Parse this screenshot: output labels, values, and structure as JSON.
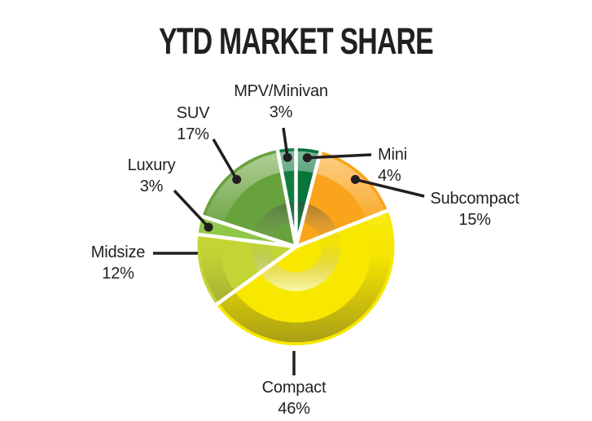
{
  "title": "YTD MARKET SHARE",
  "chart_data": {
    "type": "pie",
    "title": "YTD MARKET SHARE",
    "unit": "%",
    "start_angle_deg": 0,
    "direction": "clockwise",
    "legend_position": "outside-callouts",
    "grid": false,
    "slices": [
      {
        "label": "Mini",
        "value": 4,
        "color": "#077439"
      },
      {
        "label": "Subcompact",
        "value": 15,
        "color": "#F9A41B"
      },
      {
        "label": "Compact",
        "value": 46,
        "color": "#F8E800"
      },
      {
        "label": "Midsize",
        "value": 12,
        "color": "#C3D534"
      },
      {
        "label": "Luxury",
        "value": 3,
        "color": "#8FC747"
      },
      {
        "label": "SUV",
        "value": 17,
        "color": "#68A23C"
      },
      {
        "label": "MPV/Minivan",
        "value": 3,
        "color": "#117E41"
      }
    ]
  },
  "styles": {
    "background": "#FFFFFF",
    "title_color": "#231F20",
    "label_color": "#231F20",
    "leader_line_color": "#231F20",
    "slice_divider_color": "#FFFFFF"
  }
}
